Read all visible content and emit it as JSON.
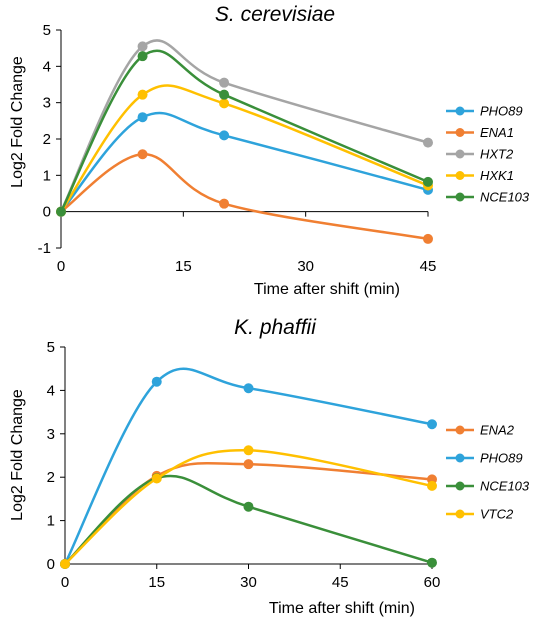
{
  "chart_data": [
    {
      "type": "line",
      "title": "S. cerevisiae",
      "xlabel": "Time after shift (min)",
      "ylabel": "Log2 Fold Change",
      "xlim": [
        0,
        45
      ],
      "ylim": [
        -1,
        5
      ],
      "xticks": [
        0,
        15,
        30,
        45
      ],
      "yticks": [
        -1,
        0,
        1,
        2,
        3,
        4,
        5
      ],
      "legend_position": "right",
      "grid": false,
      "smooth": true,
      "series": [
        {
          "name": "PHO89",
          "color": "#2EA3DB",
          "x": [
            0,
            10,
            20,
            45
          ],
          "y": [
            0,
            2.6,
            2.1,
            0.6
          ]
        },
        {
          "name": "ENA1",
          "color": "#F07F32",
          "x": [
            0,
            10,
            20,
            45
          ],
          "y": [
            0,
            1.58,
            0.22,
            -0.75
          ]
        },
        {
          "name": "HXT2",
          "color": "#A5A5A5",
          "x": [
            0,
            10,
            20,
            45
          ],
          "y": [
            0,
            4.55,
            3.55,
            1.9
          ]
        },
        {
          "name": "HXK1",
          "color": "#FFC000",
          "x": [
            0,
            10,
            20,
            45
          ],
          "y": [
            0,
            3.22,
            2.98,
            0.72
          ]
        },
        {
          "name": "NCE103",
          "color": "#3A8F3A",
          "x": [
            0,
            10,
            20,
            45
          ],
          "y": [
            0,
            4.28,
            3.22,
            0.82
          ]
        }
      ]
    },
    {
      "type": "line",
      "title": "K. phaffii",
      "xlabel": "Time after shift (min)",
      "ylabel": "Log2 Fold Change",
      "xlim": [
        0,
        60
      ],
      "ylim": [
        0,
        5
      ],
      "xticks": [
        0,
        15,
        30,
        45,
        60
      ],
      "yticks": [
        0,
        1,
        2,
        3,
        4,
        5
      ],
      "legend_position": "right",
      "grid": false,
      "smooth": true,
      "series": [
        {
          "name": "ENA2",
          "color": "#F07F32",
          "x": [
            0,
            15,
            30,
            60
          ],
          "y": [
            0,
            2.03,
            2.3,
            1.95
          ]
        },
        {
          "name": "PHO89",
          "color": "#2EA3DB",
          "x": [
            0,
            15,
            30,
            60
          ],
          "y": [
            0,
            4.2,
            4.05,
            3.22
          ]
        },
        {
          "name": "NCE103",
          "color": "#3A8F3A",
          "x": [
            0,
            15,
            30,
            60
          ],
          "y": [
            0,
            1.98,
            1.32,
            0.03
          ]
        },
        {
          "name": "VTC2",
          "color": "#FFC000",
          "x": [
            0,
            15,
            30,
            60
          ],
          "y": [
            0,
            1.97,
            2.62,
            1.8
          ]
        }
      ]
    }
  ]
}
